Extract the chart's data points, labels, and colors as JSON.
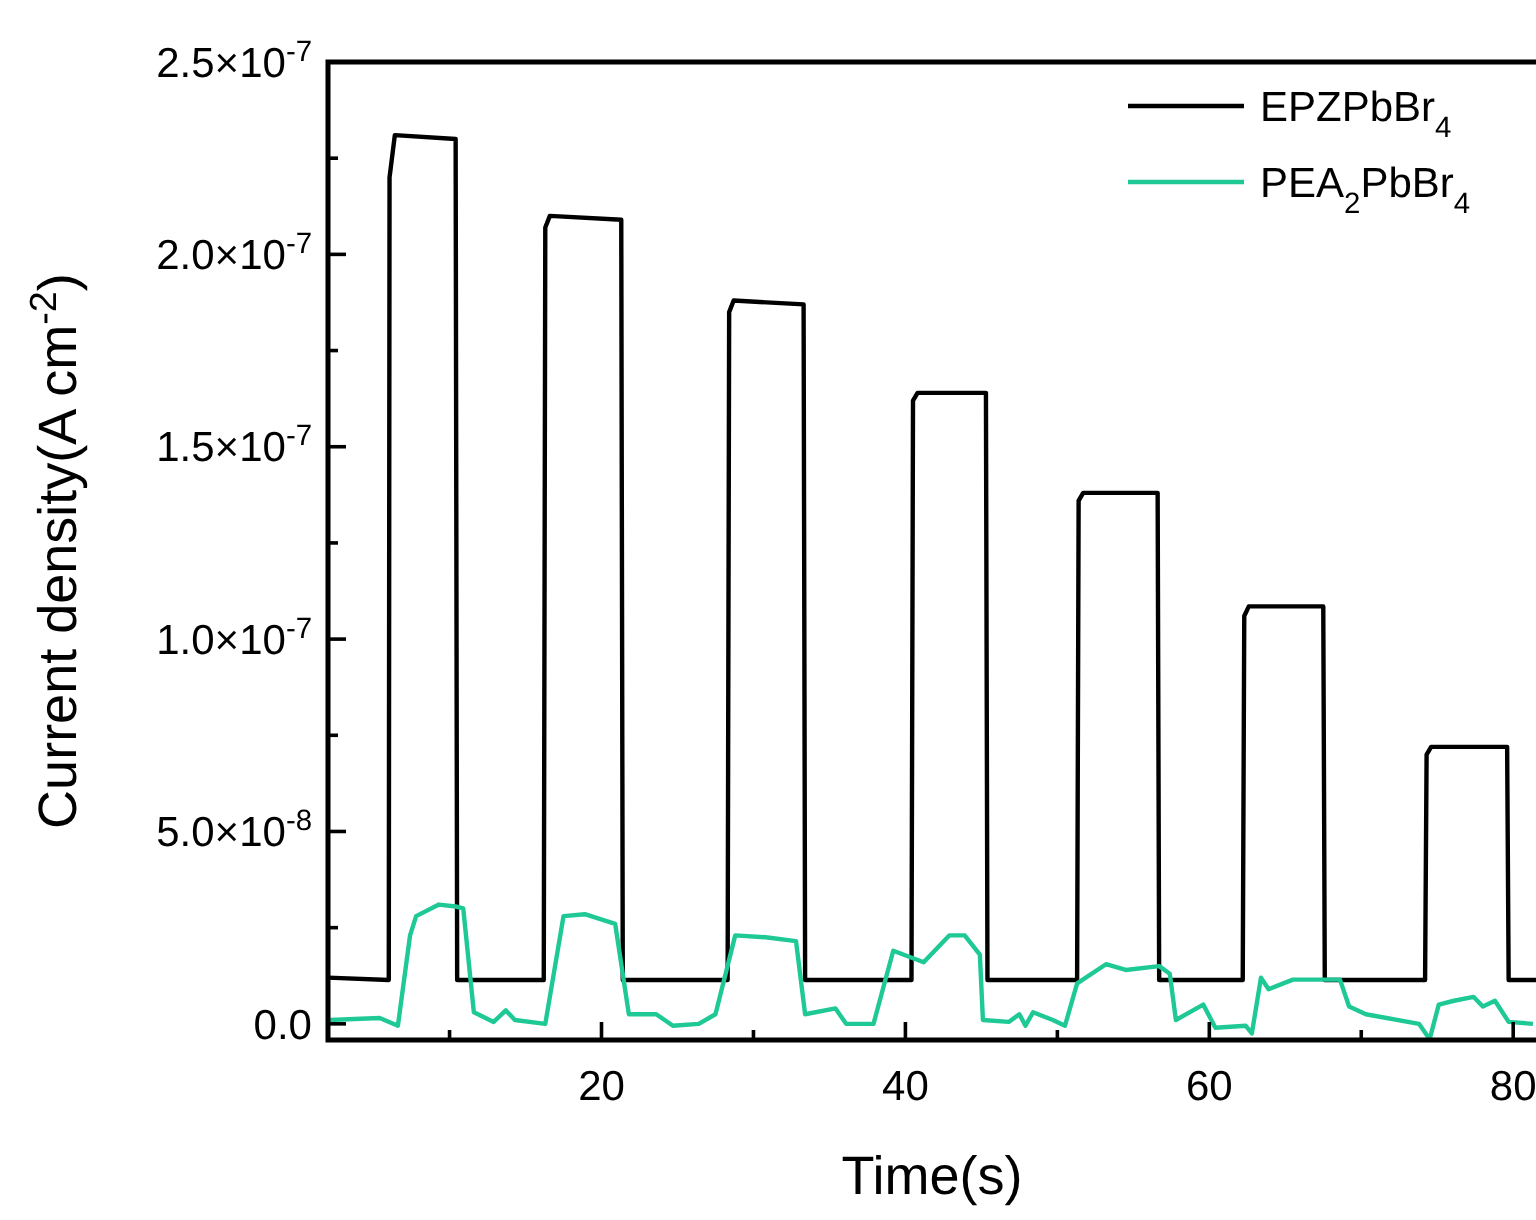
{
  "chart_data": {
    "type": "line",
    "xlabel": "Time(s)",
    "ylabel": "Current density(A cm$^{-2}$)",
    "xlim": [
      2,
      81.5
    ],
    "xticks": [
      {
        "value": 10,
        "label": null
      },
      20,
      {
        "value": 30,
        "label": null
      },
      40,
      {
        "value": 50,
        "label": null
      },
      60,
      {
        "value": 70,
        "label": null
      },
      80
    ],
    "ylim": [
      -4.2e-09,
      2.5e-07
    ],
    "yticks": [
      {
        "value": 0,
        "label": "0.0"
      },
      {
        "value": 2.5e-08,
        "label": null
      },
      {
        "value": 5e-08,
        "label": "5.0×10$^{-8}$"
      },
      {
        "value": 7.5e-08,
        "label": null
      },
      {
        "value": 1e-07,
        "label": "1.0×10$^{-7}$"
      },
      {
        "value": 1.25e-07,
        "label": null
      },
      {
        "value": 1.5e-07,
        "label": "1.5×10$^{-7}$"
      },
      {
        "value": 1.75e-07,
        "label": null
      },
      {
        "value": 2e-07,
        "label": "2.0×10$^{-7}$"
      },
      {
        "value": 2.25e-07,
        "label": null
      },
      {
        "value": 2.5e-07,
        "label": "2.5×10$^{-7}$"
      }
    ],
    "grid": false,
    "legend": "top right",
    "marker": "none",
    "line_style": "solid",
    "series": [
      {
        "name": "EPZPbBr$_{4}$",
        "color": "#000000",
        "x": [
          2,
          6.0,
          6.05,
          6.4,
          10.4,
          10.5,
          16.2,
          16.3,
          16.6,
          21.3,
          21.4,
          28.3,
          28.4,
          28.7,
          33.3,
          33.4,
          40.4,
          40.5,
          40.8,
          45.3,
          45.4,
          51.3,
          51.4,
          51.7,
          56.6,
          56.7,
          62.2,
          62.3,
          62.6,
          67.5,
          67.6,
          74.2,
          74.3,
          74.6,
          79.6,
          79.7,
          81.5
        ],
        "values": [
          1.2e-08,
          1.14e-08,
          2.2e-07,
          2.31e-07,
          2.3e-07,
          1.14e-08,
          1.14e-08,
          2.07e-07,
          2.1e-07,
          2.09e-07,
          1.14e-08,
          1.14e-08,
          1.85e-07,
          1.88e-07,
          1.87e-07,
          1.14e-08,
          1.14e-08,
          1.62e-07,
          1.64e-07,
          1.64e-07,
          1.14e-08,
          1.14e-08,
          1.36e-07,
          1.38e-07,
          1.38e-07,
          1.14e-08,
          1.14e-08,
          1.06e-07,
          1.085e-07,
          1.085e-07,
          1.14e-08,
          1.14e-08,
          7e-08,
          7.2e-08,
          7.2e-08,
          1.14e-08,
          1.14e-08
        ]
      },
      {
        "name": "PEA$_{2}$PbBr$_{4}$",
        "color": "#1fc995",
        "x": [
          2.1,
          5.4,
          6.6,
          7.4,
          7.8,
          9.3,
          10.4,
          10.9,
          11.6,
          12.9,
          13.7,
          14.3,
          16.3,
          17.5,
          18.9,
          20.9,
          21.8,
          23.6,
          24.7,
          26.4,
          27.5,
          28.8,
          30.8,
          32.8,
          33.4,
          35.4,
          36.1,
          37.9,
          39.2,
          41.2,
          42.9,
          43.9,
          44.9,
          45.1,
          46.8,
          47.5,
          47.9,
          48.4,
          49.7,
          50.5,
          51.3,
          53.2,
          54.5,
          56.7,
          57.4,
          57.8,
          59.6,
          60.4,
          62.4,
          62.8,
          63.4,
          63.9,
          65.5,
          68.6,
          69.2,
          70.3,
          73.8,
          74.5,
          75.1,
          76.1,
          77.4,
          78.0,
          78.8,
          79.7,
          81.3
        ],
        "values": [
          1e-09,
          1.5e-09,
          -5e-10,
          2.3e-08,
          2.8e-08,
          3.1e-08,
          3.05e-08,
          3e-08,
          3e-09,
          5e-10,
          3.5e-09,
          1e-09,
          0,
          2.8e-08,
          2.85e-08,
          2.6e-08,
          2.5e-09,
          2.5e-09,
          -5e-10,
          0,
          2.5e-09,
          2.3e-08,
          2.25e-08,
          2.15e-08,
          2.5e-09,
          4e-09,
          0,
          0,
          1.9e-08,
          1.6e-08,
          2.3e-08,
          2.3e-08,
          1.8e-08,
          1e-09,
          5e-10,
          2.5e-09,
          -5e-10,
          3e-09,
          1e-09,
          -5e-10,
          1.05e-08,
          1.55e-08,
          1.4e-08,
          1.5e-08,
          1.3e-08,
          1e-09,
          5e-09,
          -1e-09,
          -5e-10,
          -2.5e-09,
          1.2e-08,
          9e-09,
          1.15e-08,
          1.15e-08,
          4.5e-09,
          2.5e-09,
          0,
          -4e-09,
          5e-09,
          6e-09,
          7e-09,
          4.5e-09,
          6e-09,
          5e-10,
          0
        ]
      }
    ]
  }
}
